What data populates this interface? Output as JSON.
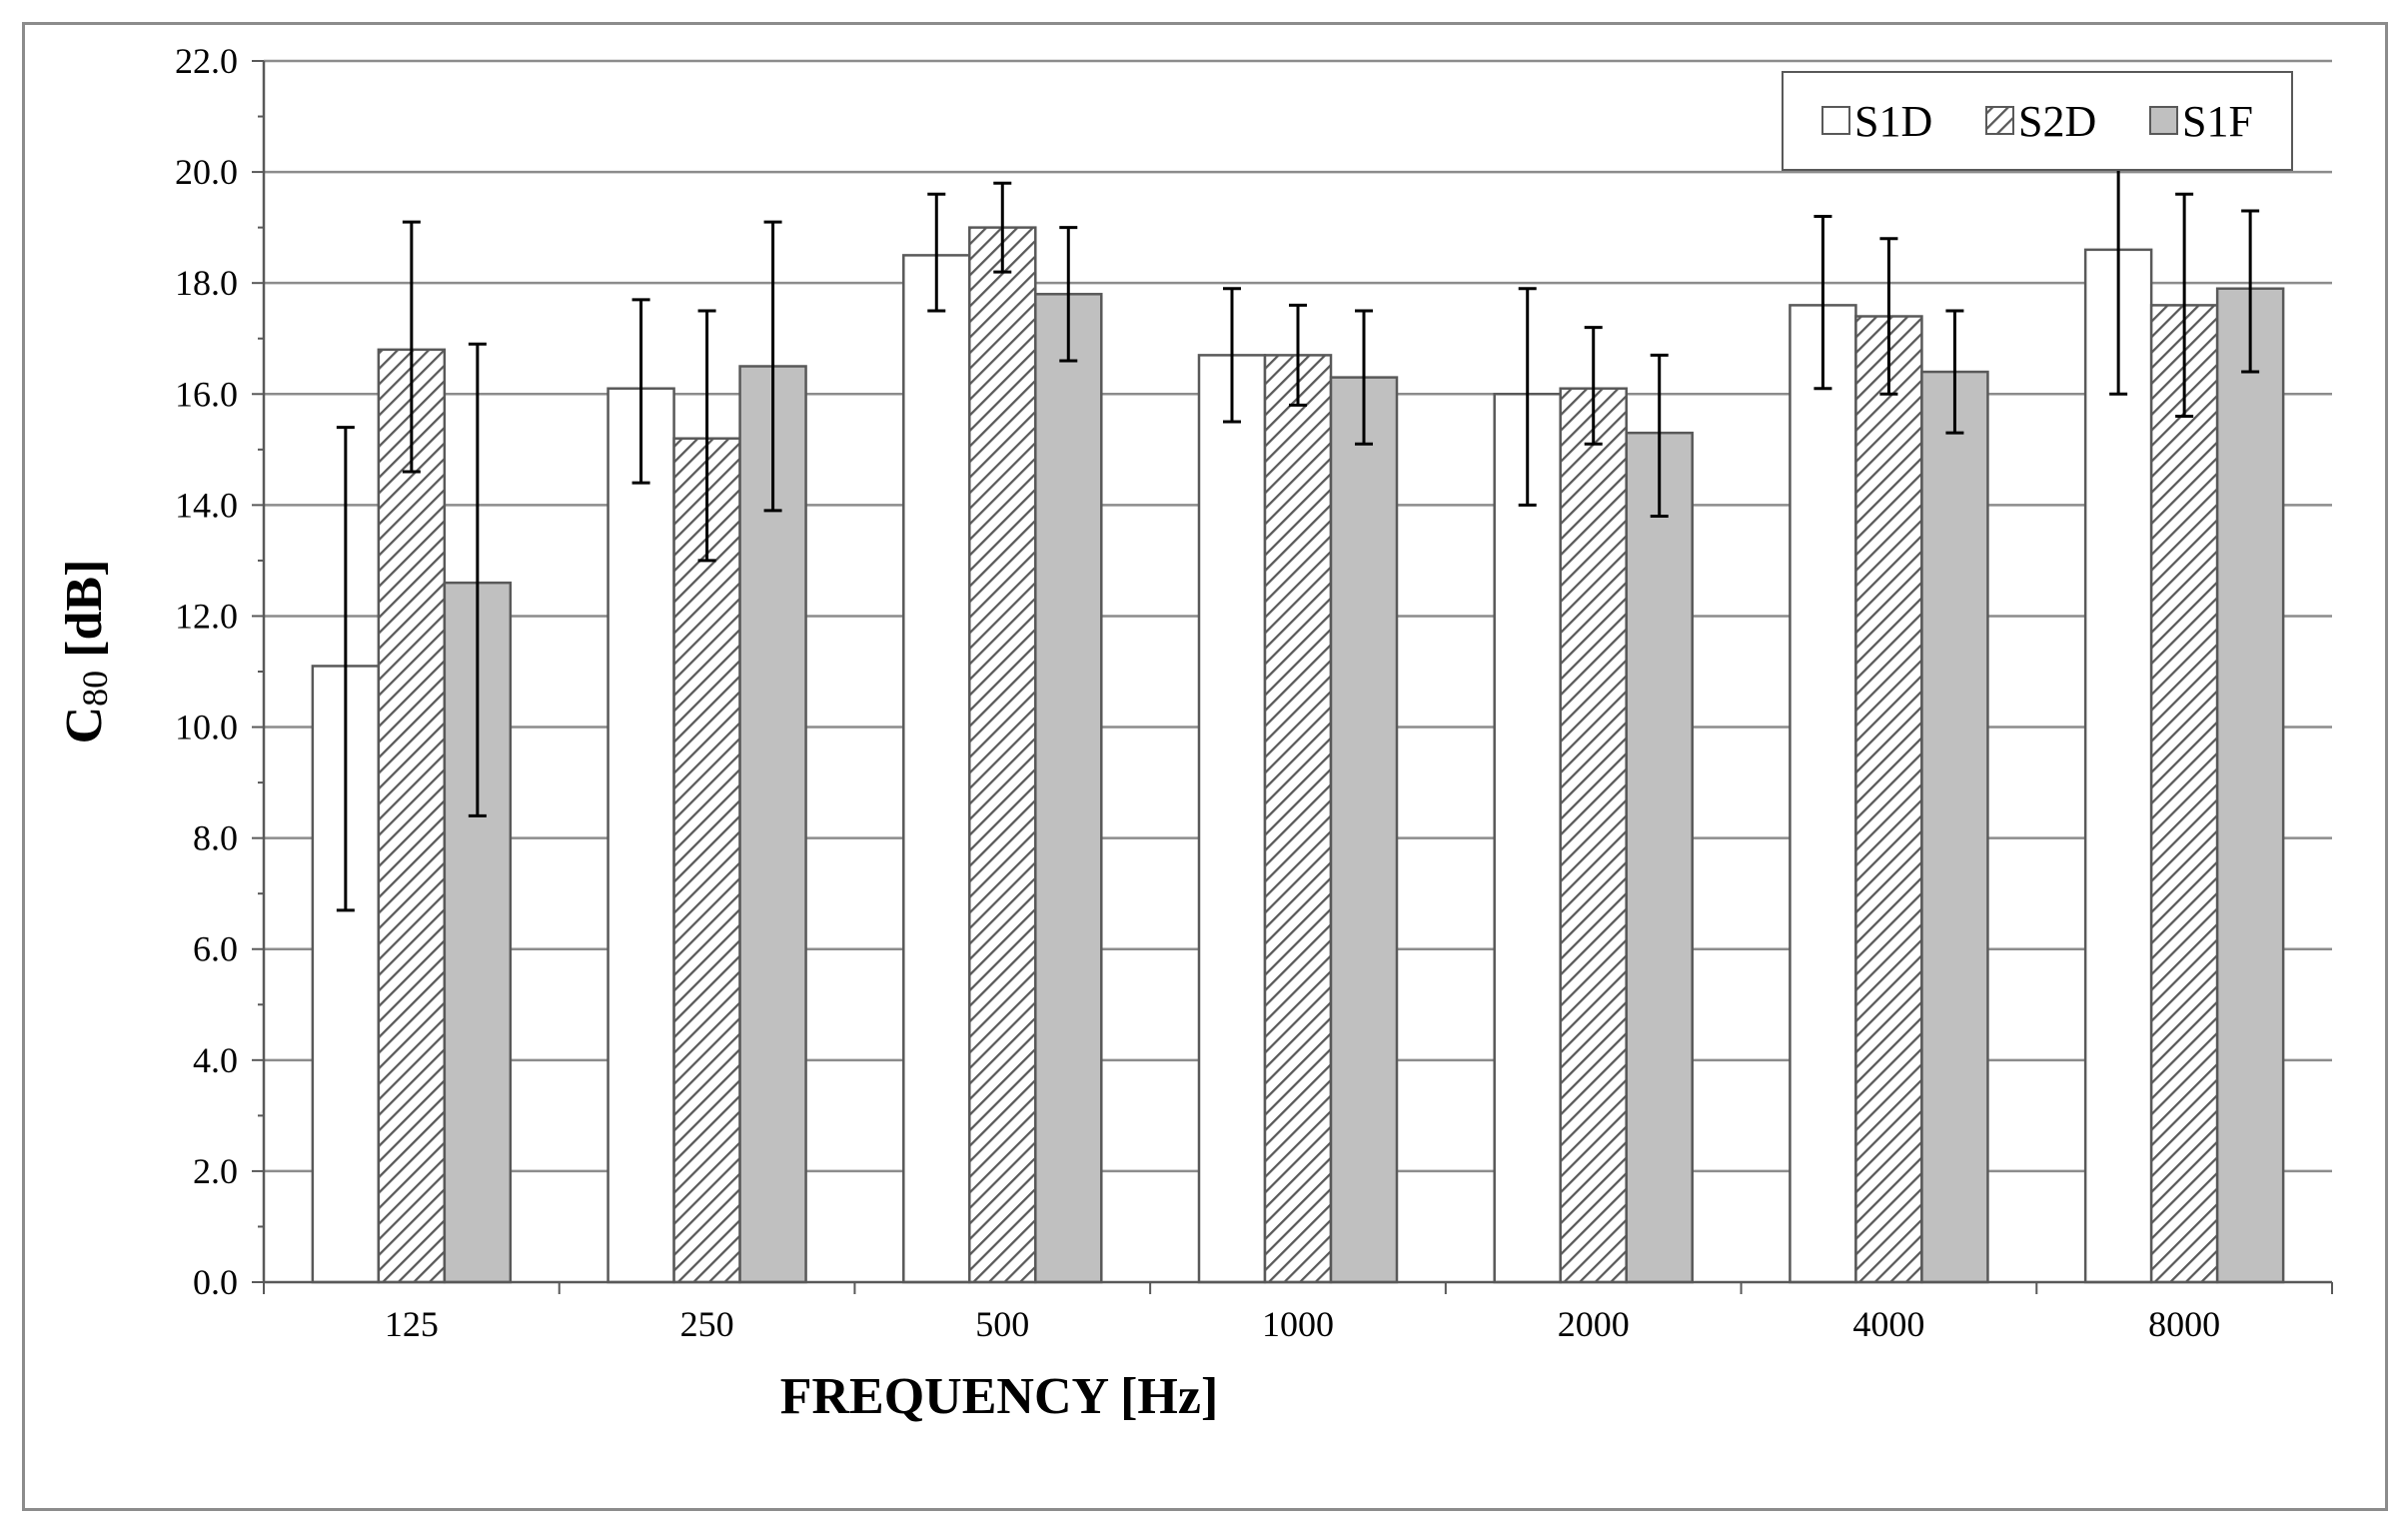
{
  "chart_data": {
    "type": "bar",
    "title": "",
    "xlabel": "FREQUENCY [Hz]",
    "ylabel_main": "C",
    "ylabel_sub": "80",
    "ylabel_unit": " [dB]",
    "categories": [
      "125",
      "250",
      "500",
      "1000",
      "2000",
      "4000",
      "8000"
    ],
    "ylim": [
      0,
      22
    ],
    "ytick_step": 2,
    "ytick_labels": [
      "0.0",
      "2.0",
      "4.0",
      "6.0",
      "8.0",
      "10.0",
      "12.0",
      "14.0",
      "16.0",
      "18.0",
      "20.0",
      "22.0"
    ],
    "grid": true,
    "legend_position": "top-right",
    "series": [
      {
        "name": "S1D",
        "fill": "white",
        "values": [
          11.1,
          16.1,
          18.5,
          16.7,
          16.0,
          17.6,
          18.6
        ],
        "err_low": [
          6.7,
          14.4,
          17.5,
          15.5,
          14.0,
          16.1,
          16.0
        ],
        "err_high": [
          15.4,
          17.7,
          19.6,
          17.9,
          17.9,
          19.2,
          21.3
        ]
      },
      {
        "name": "S2D",
        "fill": "hatched",
        "values": [
          16.8,
          15.2,
          19.0,
          16.7,
          16.1,
          17.4,
          17.6
        ],
        "err_low": [
          14.6,
          13.0,
          18.2,
          15.8,
          15.1,
          16.0,
          15.6
        ],
        "err_high": [
          19.1,
          17.5,
          19.8,
          17.6,
          17.2,
          18.8,
          19.6
        ]
      },
      {
        "name": "S1F",
        "fill": "gray",
        "values": [
          12.6,
          16.5,
          17.8,
          16.3,
          15.3,
          16.4,
          17.9
        ],
        "err_low": [
          8.4,
          13.9,
          16.6,
          15.1,
          13.8,
          15.3,
          16.4
        ],
        "err_high": [
          16.9,
          19.1,
          19.0,
          17.5,
          16.7,
          17.5,
          19.3
        ]
      }
    ]
  },
  "colors": {
    "gray_fill": "#c0c0c0",
    "bar_stroke": "#595959",
    "grid": "#8c8c8c",
    "hatch": "#595959",
    "error_bar": "#000000"
  }
}
